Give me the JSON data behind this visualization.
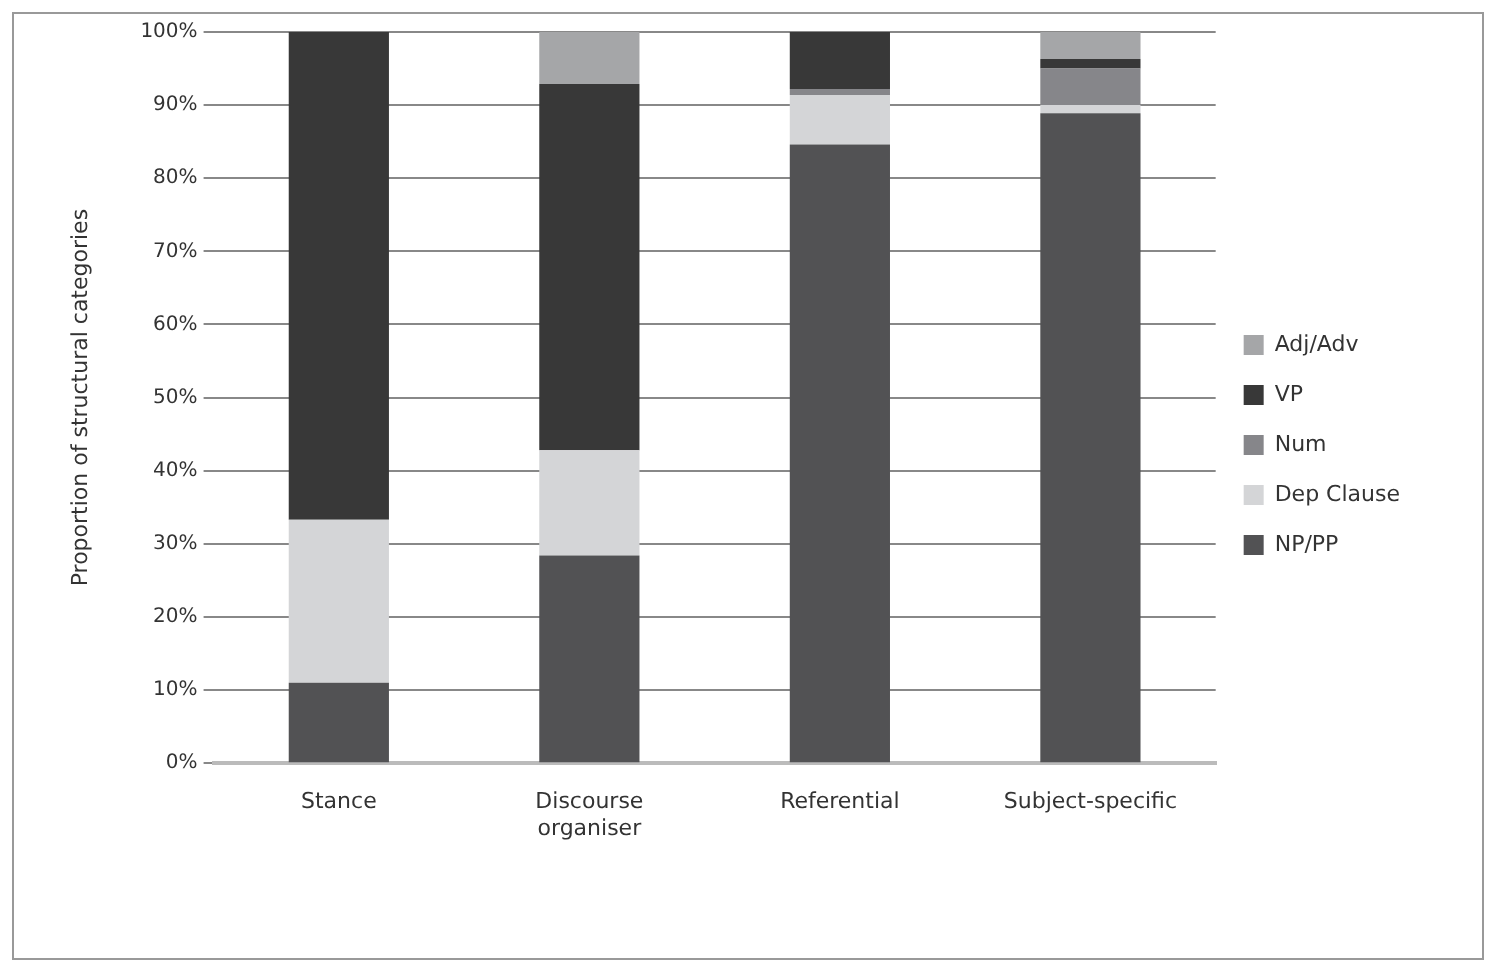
{
  "chart_data": {
    "type": "bar",
    "stacked": true,
    "ylabel": "Proportion of structural categories",
    "categories": [
      "Stance",
      "Discourse organiser",
      "Referential",
      "Subject-specific"
    ],
    "series": [
      {
        "name": "NP/PP",
        "color": "#525254",
        "values": [
          11.0,
          28.4,
          84.6,
          88.9
        ]
      },
      {
        "name": "Dep Clause",
        "color": "#d4d5d7",
        "values": [
          22.3,
          14.4,
          6.8,
          1.1
        ]
      },
      {
        "name": "Num",
        "color": "#86868a",
        "values": [
          0,
          0,
          0.8,
          5.0
        ]
      },
      {
        "name": "VP",
        "color": "#383838",
        "values": [
          66.7,
          50.1,
          7.8,
          1.3
        ]
      },
      {
        "name": "Adj/Adv",
        "color": "#a5a6a8",
        "values": [
          0,
          7.1,
          0,
          3.7
        ]
      }
    ],
    "ylim": [
      0,
      100
    ],
    "yticks": [
      {
        "value": 0,
        "label": "0%"
      },
      {
        "value": 10,
        "label": "10%"
      },
      {
        "value": 20,
        "label": "20%"
      },
      {
        "value": 30,
        "label": "30%"
      },
      {
        "value": 40,
        "label": "40%"
      },
      {
        "value": 50,
        "label": "50%"
      },
      {
        "value": 60,
        "label": "60%"
      },
      {
        "value": 70,
        "label": "70%"
      },
      {
        "value": 80,
        "label": "80%"
      },
      {
        "value": 90,
        "label": "90%"
      },
      {
        "value": 100,
        "label": "100%"
      }
    ],
    "grid": "y",
    "legend": "right"
  }
}
